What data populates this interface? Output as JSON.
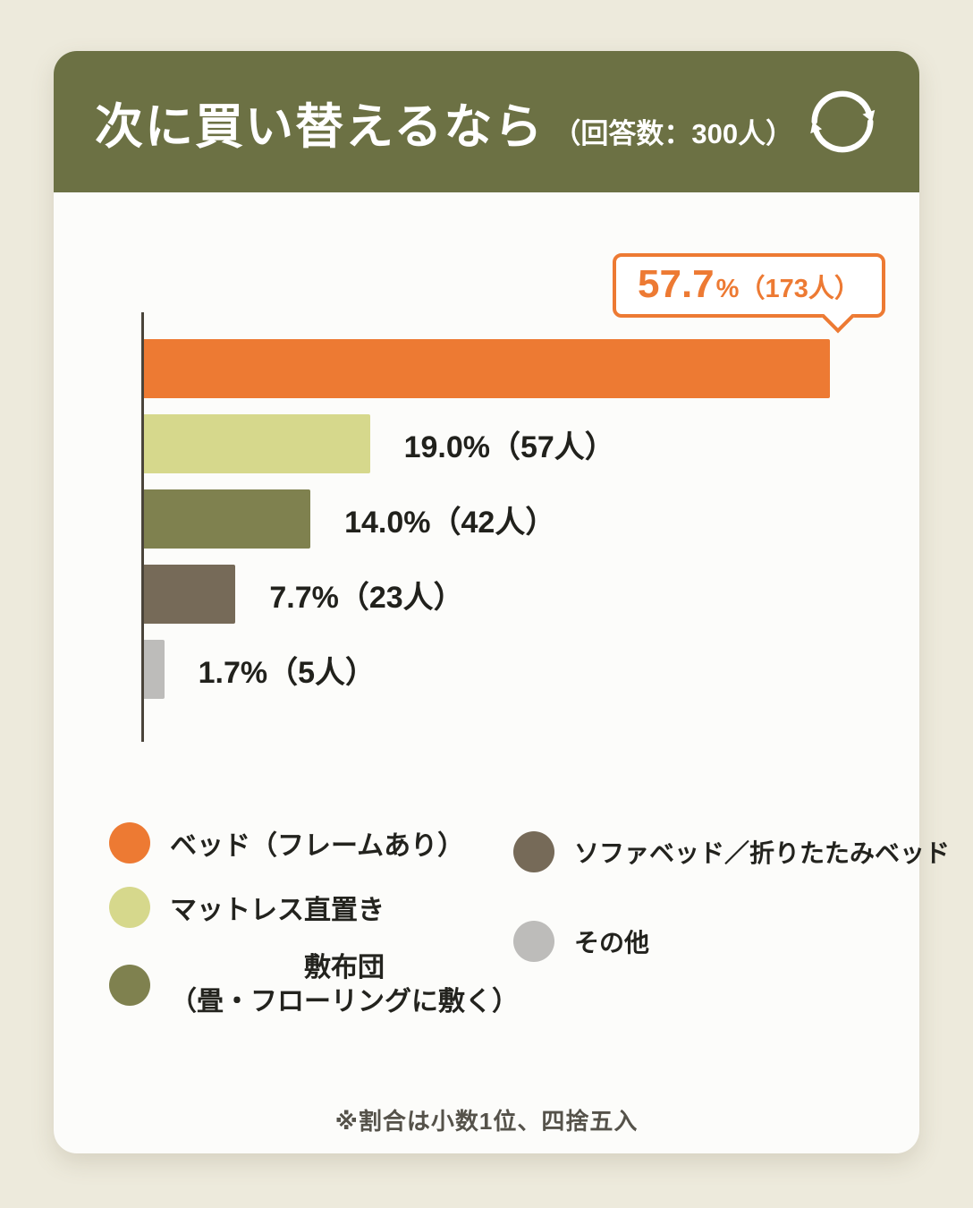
{
  "colors": {
    "page_bg": "#edeadc",
    "card_bg": "#fcfcfa",
    "header_bg": "#6c7144",
    "accent_orange": "#ed7a33",
    "axis": "#4a443a",
    "text_dark": "#21211c",
    "note_text": "#55524a"
  },
  "header": {
    "title": "次に買い替えるなら",
    "subtitle": "（回答数：300人）"
  },
  "callout": {
    "value": "57.7",
    "unit": "%",
    "detail": "（173人）"
  },
  "chart_data": {
    "type": "bar",
    "orientation": "horizontal",
    "title": "次に買い替えるなら（回答数：300人）",
    "total_responses": 300,
    "categories": [
      "ベッド（フレームあり）",
      "マットレス直置き",
      "敷布団（畳・フローリングに敷く）",
      "ソファベッド／折りたたみベッド",
      "その他"
    ],
    "values": [
      57.7,
      19.0,
      14.0,
      7.7,
      1.7
    ],
    "counts": [
      173,
      57,
      42,
      23,
      5
    ],
    "bar_labels": [
      "57.7%（173人）",
      "19.0%（57人）",
      "14.0%（42人）",
      "7.7%（23人）",
      "1.7%（5人）"
    ],
    "colors": [
      "#ed7a33",
      "#d6d88c",
      "#7f814f",
      "#766a58",
      "#bdbcba"
    ],
    "xlim": [
      0,
      60
    ],
    "grid": false,
    "legend_position": "bottom"
  },
  "legend": {
    "items": [
      {
        "label": "ベッド（フレームあり）",
        "color": "#ed7a33"
      },
      {
        "label": "マットレス直置き",
        "color": "#d6d88c"
      },
      {
        "label_line1": "敷布団",
        "label_line2": "（畳・フローリングに敷く）",
        "color": "#7f814f"
      },
      {
        "label": "ソファベッド／折りたたみベッド",
        "color": "#766a58"
      },
      {
        "label": "その他",
        "color": "#bdbcba"
      }
    ]
  },
  "footer": {
    "note": "※割合は小数1位、四捨五入"
  }
}
